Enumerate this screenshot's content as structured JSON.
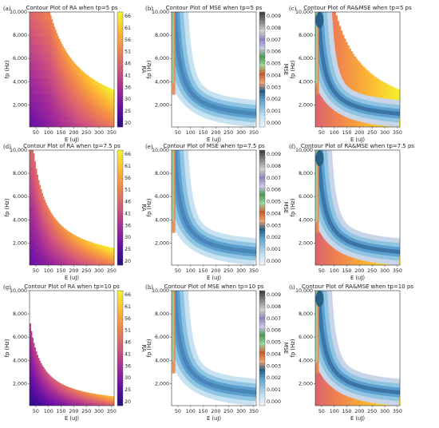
{
  "figure": {
    "x_label": "E (uJ)",
    "y_label": "fp (Hz)",
    "x_ticks": [
      "50",
      "100",
      "150",
      "200",
      "250",
      "300",
      "350"
    ],
    "y_ticks_top": [
      "10,000",
      "8,000",
      "6,000",
      "4,000",
      "2,000"
    ],
    "y_ticks_lower": [
      "10,000",
      "8,000",
      "6,000",
      "4,000",
      "2,000"
    ],
    "ra_colorbar": {
      "label": "RA",
      "ticks": [
        "66",
        "61",
        "56",
        "51",
        "46",
        "41",
        "36",
        "30",
        "25",
        "20"
      ]
    },
    "mse_colorbar": {
      "label": "MSE",
      "ticks": [
        "0.009",
        "0.008",
        "0.007",
        "0.006",
        "0.005",
        "0.004",
        "0.003",
        "0.002",
        "0.001",
        "0.000"
      ]
    }
  },
  "chart_data": [
    {
      "panel": "(a)",
      "title": "Contour Plot of RA when tp=5 ps",
      "type": "heatmap",
      "quantity": "RA",
      "xlim": [
        25,
        360
      ],
      "ylim": [
        100,
        10000
      ],
      "zlim": [
        20,
        66
      ],
      "colormap": "plasma",
      "y_ticks": "10,000/8,000/6,000/4,000/2,000"
    },
    {
      "panel": "(b)",
      "title": "Contour Plot of MSE when tp=5 ps",
      "type": "heatmap",
      "quantity": "MSE",
      "xlim": [
        25,
        360
      ],
      "ylim": [
        100,
        10000
      ],
      "zlim": [
        0,
        0.0095
      ],
      "y_ticks": "10,000/8,000/6,000/4,000/2,000"
    },
    {
      "panel": "(c)",
      "title": "Contour Plot of RA&MSE when tp=5 ps",
      "type": "heatmap",
      "quantity": "RA&MSE",
      "xlim": [
        25,
        360
      ],
      "ylim": [
        100,
        10000
      ]
    },
    {
      "panel": "(d)",
      "title": "Contour Plot of RA when tp=7.5 ps",
      "type": "heatmap",
      "quantity": "RA",
      "xlim": [
        25,
        360
      ],
      "ylim": [
        100,
        10000
      ],
      "zlim": [
        20,
        66
      ],
      "colormap": "plasma"
    },
    {
      "panel": "(e)",
      "title": "Contour Plot of MSE when tp=7.5 ps",
      "type": "heatmap",
      "quantity": "MSE",
      "xlim": [
        25,
        360
      ],
      "ylim": [
        100,
        10000
      ],
      "zlim": [
        0,
        0.0095
      ]
    },
    {
      "panel": "(f)",
      "title": "Contour Plot of RA&MSE when tp=7.5 ps",
      "type": "heatmap",
      "quantity": "RA&MSE",
      "xlim": [
        25,
        360
      ],
      "ylim": [
        100,
        10000
      ]
    },
    {
      "panel": "(g)",
      "title": "Contour Plot of RA when tp=10 ps",
      "type": "heatmap",
      "quantity": "RA",
      "xlim": [
        25,
        360
      ],
      "ylim": [
        100,
        10000
      ],
      "zlim": [
        20,
        66
      ],
      "colormap": "plasma"
    },
    {
      "panel": "(h)",
      "title": "Contour Plot of MSE when tp=10 ps",
      "type": "heatmap",
      "quantity": "MSE",
      "xlim": [
        25,
        360
      ],
      "ylim": [
        100,
        10000
      ],
      "zlim": [
        0,
        0.0095
      ]
    },
    {
      "panel": "(i)",
      "title": "Contour Plot of RA&MSE when tp=10 ps",
      "type": "heatmap",
      "quantity": "RA&MSE",
      "xlim": [
        25,
        360
      ],
      "ylim": [
        100,
        10000
      ]
    }
  ],
  "colors": {
    "ra_stops": [
      "#2a0a8a",
      "#6a0fa8",
      "#a52c98",
      "#d4577a",
      "#f0834e",
      "#fdb733",
      "#f4f22c"
    ],
    "mse_stops": [
      "#eaf3f9",
      "#c7e2f1",
      "#8fc4e3",
      "#5b9fcf",
      "#e98a4c",
      "#cf5a2a",
      "#9fd39a",
      "#4d9d50",
      "#c9c6e6",
      "#8d86c0",
      "#d0d0d0",
      "#8a8a8a"
    ],
    "overlap_blob": "#2a5f88"
  }
}
